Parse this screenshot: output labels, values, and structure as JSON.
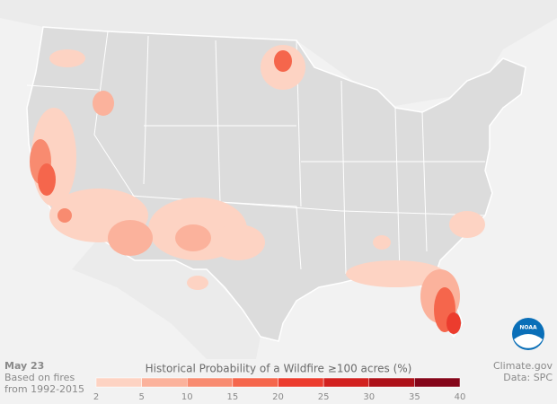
{
  "date": "May 23",
  "note": [
    "Based on fires",
    "from 1992-2015"
  ],
  "credit": [
    "Climate.gov",
    "Data: SPC"
  ],
  "logo": "NOAA",
  "legend": {
    "title": "Historical Probability of a Wildfire ≥100 acres (%)",
    "ticks": [
      2,
      5,
      10,
      15,
      20,
      25,
      30,
      35,
      40
    ],
    "colors": [
      "#fdd3c3",
      "#fbb29c",
      "#f88b70",
      "#f5664c",
      "#ec3c2e",
      "#d2211f",
      "#ad1119",
      "#85061a"
    ]
  }
}
